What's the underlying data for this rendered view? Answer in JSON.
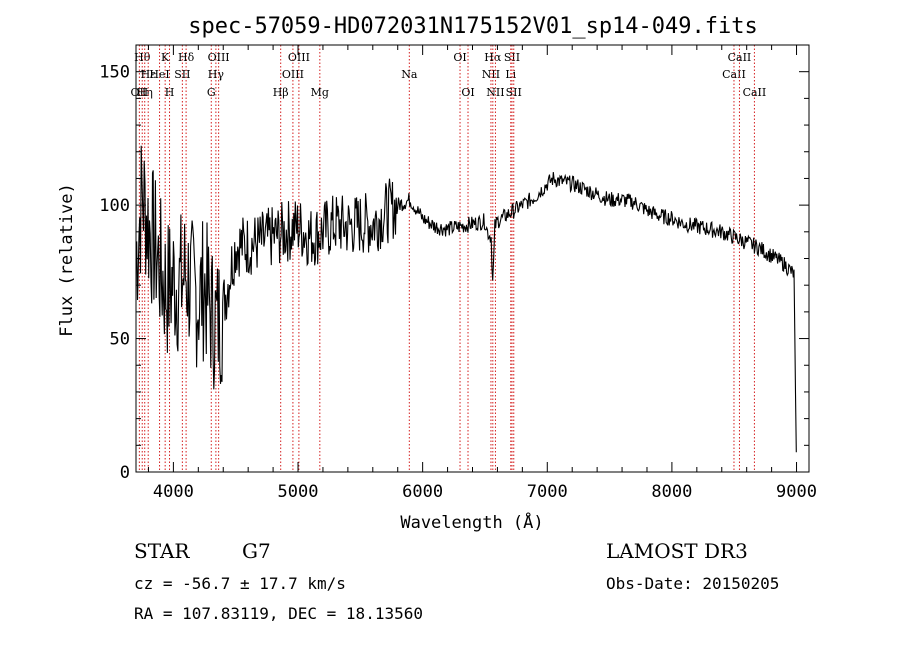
{
  "chart_data": {
    "type": "line",
    "title": "spec-57059-HD072031N175152V01_sp14-049.fits",
    "xlabel": "Wavelength (Å)",
    "ylabel": "Flux (relative)",
    "xlim": [
      3700,
      9100
    ],
    "ylim": [
      0,
      160
    ],
    "xticks": [
      4000,
      5000,
      6000,
      7000,
      8000,
      9000
    ],
    "yticks": [
      0,
      50,
      100,
      150
    ],
    "series": [
      {
        "name": "spectrum",
        "x": [
          3700,
          3750,
          3800,
          3850,
          3900,
          3950,
          4000,
          4050,
          4100,
          4150,
          4200,
          4250,
          4300,
          4350,
          4400,
          4500,
          4600,
          4700,
          4800,
          4900,
          5000,
          5100,
          5200,
          5300,
          5400,
          5500,
          5600,
          5700,
          5800,
          5900,
          6000,
          6100,
          6200,
          6300,
          6400,
          6500,
          6520,
          6550,
          6563,
          6580,
          6600,
          6700,
          6800,
          6900,
          7000,
          7050,
          7100,
          7200,
          7300,
          7400,
          7500,
          7600,
          7700,
          7800,
          7900,
          8000,
          8100,
          8200,
          8300,
          8400,
          8500,
          8600,
          8700,
          8800,
          8900,
          8980,
          9000
        ],
        "y": [
          80,
          105,
          92,
          85,
          75,
          68,
          72,
          70,
          75,
          68,
          65,
          70,
          60,
          55,
          62,
          85,
          85,
          86,
          88,
          90,
          92,
          88,
          90,
          93,
          92,
          93,
          93,
          97,
          100,
          102,
          95,
          92,
          91,
          92,
          93,
          94,
          90,
          88,
          70,
          92,
          94,
          97,
          100,
          103,
          108,
          110,
          109,
          108,
          106,
          104,
          102,
          102,
          101,
          98,
          96,
          95,
          93,
          92,
          91,
          90,
          88,
          86,
          84,
          81,
          78,
          74,
          0
        ]
      }
    ],
    "lines": [
      {
        "wave": 3727,
        "label": "OII",
        "row": 2
      },
      {
        "wave": 3750,
        "label": "Hθ",
        "row": 0
      },
      {
        "wave": 3770,
        "label": "Hη",
        "row": 2
      },
      {
        "wave": 3798,
        "label": "Hε",
        "row": 1
      },
      {
        "wave": 3889,
        "label": "HeI",
        "row": 1
      },
      {
        "wave": 3934,
        "label": "K",
        "row": 0
      },
      {
        "wave": 3969,
        "label": "H",
        "row": 2
      },
      {
        "wave": 4072,
        "label": "SII",
        "row": 1
      },
      {
        "wave": 4102,
        "label": "Hδ",
        "row": 0
      },
      {
        "wave": 4304,
        "label": "G",
        "row": 2
      },
      {
        "wave": 4341,
        "label": "Hγ",
        "row": 1
      },
      {
        "wave": 4363,
        "label": "OIII",
        "row": 0
      },
      {
        "wave": 4861,
        "label": "Hβ",
        "row": 2
      },
      {
        "wave": 4959,
        "label": "OIII",
        "row": 1
      },
      {
        "wave": 5007,
        "label": "OIII",
        "row": 0
      },
      {
        "wave": 5175,
        "label": "Mg",
        "row": 2
      },
      {
        "wave": 5893,
        "label": "Na",
        "row": 1
      },
      {
        "wave": 6300,
        "label": "OI",
        "row": 0
      },
      {
        "wave": 6364,
        "label": "OI",
        "row": 2
      },
      {
        "wave": 6548,
        "label": "NII",
        "row": 1
      },
      {
        "wave": 6563,
        "label": "Hα",
        "row": 0
      },
      {
        "wave": 6584,
        "label": "NII",
        "row": 2
      },
      {
        "wave": 6707,
        "label": "Li",
        "row": 1
      },
      {
        "wave": 6717,
        "label": "SII",
        "row": 0
      },
      {
        "wave": 6731,
        "label": "SII",
        "row": 2
      },
      {
        "wave": 8498,
        "label": "CaII",
        "row": 1
      },
      {
        "wave": 8542,
        "label": "CaII",
        "row": 0
      },
      {
        "wave": 8662,
        "label": "CaII",
        "row": 2
      }
    ],
    "line_color": "#d41f1f"
  },
  "footer": {
    "object_type": "STAR",
    "subclass": "G7",
    "survey": "LAMOST DR3",
    "cz": "cz = -56.7 ± 17.7 km/s",
    "obs_date": "Obs-Date: 20150205",
    "coords": "RA = 107.83119, DEC =  18.13560"
  }
}
